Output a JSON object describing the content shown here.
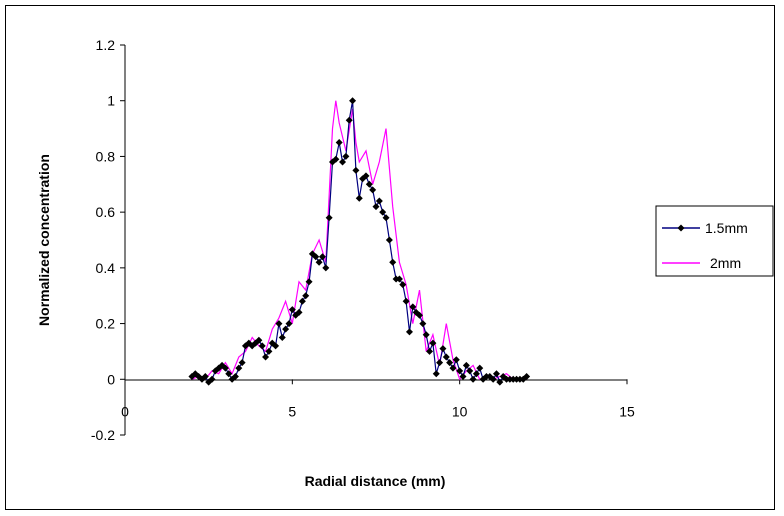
{
  "chart_data": {
    "type": "line",
    "xlabel": "Radial distance (mm)",
    "ylabel": "Normalized concentration",
    "xlim": [
      0,
      15
    ],
    "ylim": [
      -0.2,
      1.2
    ],
    "x_ticks": [
      0,
      5,
      10,
      15
    ],
    "y_ticks": [
      -0.2,
      0,
      0.2,
      0.4,
      0.6,
      0.8,
      1,
      1.2
    ],
    "x_tick_labels": [
      "0",
      "5",
      "10",
      "15"
    ],
    "y_tick_labels": [
      "-0.2",
      "0",
      "0.2",
      "0.4",
      "0.6",
      "0.8",
      "1",
      "1.2"
    ],
    "grid": false,
    "legend_position": "right",
    "series": [
      {
        "name": "1.5mm",
        "color": "#000080",
        "marker": "diamond",
        "x": [
          2.0,
          2.1,
          2.2,
          2.3,
          2.4,
          2.5,
          2.6,
          2.7,
          2.8,
          2.9,
          3.0,
          3.1,
          3.2,
          3.3,
          3.4,
          3.5,
          3.6,
          3.7,
          3.8,
          3.9,
          4.0,
          4.1,
          4.2,
          4.3,
          4.4,
          4.5,
          4.6,
          4.7,
          4.8,
          4.9,
          5.0,
          5.1,
          5.2,
          5.3,
          5.4,
          5.5,
          5.6,
          5.7,
          5.8,
          5.9,
          6.0,
          6.1,
          6.2,
          6.3,
          6.4,
          6.5,
          6.6,
          6.7,
          6.8,
          6.9,
          7.0,
          7.1,
          7.2,
          7.3,
          7.4,
          7.5,
          7.6,
          7.7,
          7.8,
          7.9,
          8.0,
          8.1,
          8.2,
          8.3,
          8.4,
          8.5,
          8.6,
          8.7,
          8.8,
          8.9,
          9.0,
          9.1,
          9.2,
          9.3,
          9.4,
          9.5,
          9.6,
          9.7,
          9.8,
          9.9,
          10.0,
          10.1,
          10.2,
          10.3,
          10.4,
          10.5,
          10.6,
          10.7,
          10.8,
          10.9,
          11.0,
          11.1,
          11.2,
          11.3,
          11.4,
          11.5,
          11.6,
          11.7,
          11.8,
          11.9,
          12.0
        ],
        "y": [
          0.01,
          0.02,
          0.01,
          0.0,
          0.01,
          -0.01,
          0.0,
          0.03,
          0.04,
          0.05,
          0.04,
          0.02,
          0.0,
          0.01,
          0.04,
          0.06,
          0.12,
          0.13,
          0.12,
          0.13,
          0.14,
          0.12,
          0.08,
          0.1,
          0.13,
          0.12,
          0.2,
          0.15,
          0.18,
          0.2,
          0.25,
          0.23,
          0.24,
          0.28,
          0.3,
          0.35,
          0.45,
          0.44,
          0.42,
          0.44,
          0.4,
          0.58,
          0.78,
          0.79,
          0.85,
          0.78,
          0.8,
          0.93,
          1.0,
          0.75,
          0.65,
          0.72,
          0.73,
          0.7,
          0.68,
          0.62,
          0.64,
          0.6,
          0.58,
          0.5,
          0.42,
          0.36,
          0.36,
          0.34,
          0.28,
          0.17,
          0.26,
          0.24,
          0.23,
          0.2,
          0.16,
          0.1,
          0.13,
          0.02,
          0.06,
          0.11,
          0.08,
          0.06,
          0.04,
          0.07,
          0.03,
          0.01,
          0.05,
          0.03,
          0.0,
          0.02,
          0.04,
          0.0,
          0.01,
          0.01,
          0.0,
          0.02,
          -0.01,
          0.01,
          0.0,
          0.0,
          0.0,
          0.0,
          0.0,
          0.0,
          0.01
        ]
      },
      {
        "name": "2mm",
        "color": "#ff00ff",
        "marker": "none",
        "x": [
          2.0,
          2.2,
          2.4,
          2.6,
          2.8,
          3.0,
          3.2,
          3.4,
          3.6,
          3.8,
          4.0,
          4.2,
          4.4,
          4.6,
          4.8,
          5.0,
          5.2,
          5.4,
          5.6,
          5.8,
          6.0,
          6.2,
          6.3,
          6.4,
          6.6,
          6.8,
          6.9,
          7.0,
          7.2,
          7.4,
          7.6,
          7.8,
          8.0,
          8.2,
          8.4,
          8.6,
          8.8,
          9.0,
          9.2,
          9.4,
          9.6,
          9.8,
          10.0,
          10.2,
          10.4,
          10.6,
          10.8,
          11.0,
          11.2,
          11.4,
          11.6,
          11.8,
          12.0
        ],
        "y": [
          0.0,
          0.01,
          0.0,
          0.03,
          0.02,
          0.06,
          0.02,
          0.08,
          0.1,
          0.15,
          0.12,
          0.1,
          0.18,
          0.22,
          0.28,
          0.2,
          0.35,
          0.32,
          0.45,
          0.5,
          0.42,
          0.9,
          1.0,
          0.92,
          0.82,
          0.97,
          0.85,
          0.78,
          0.82,
          0.7,
          0.78,
          0.9,
          0.62,
          0.42,
          0.34,
          0.2,
          0.32,
          0.1,
          0.16,
          0.05,
          0.2,
          0.07,
          0.0,
          0.03,
          0.05,
          0.0,
          0.01,
          0.0,
          0.01,
          0.02,
          0.0,
          0.0,
          0.0
        ]
      }
    ]
  }
}
